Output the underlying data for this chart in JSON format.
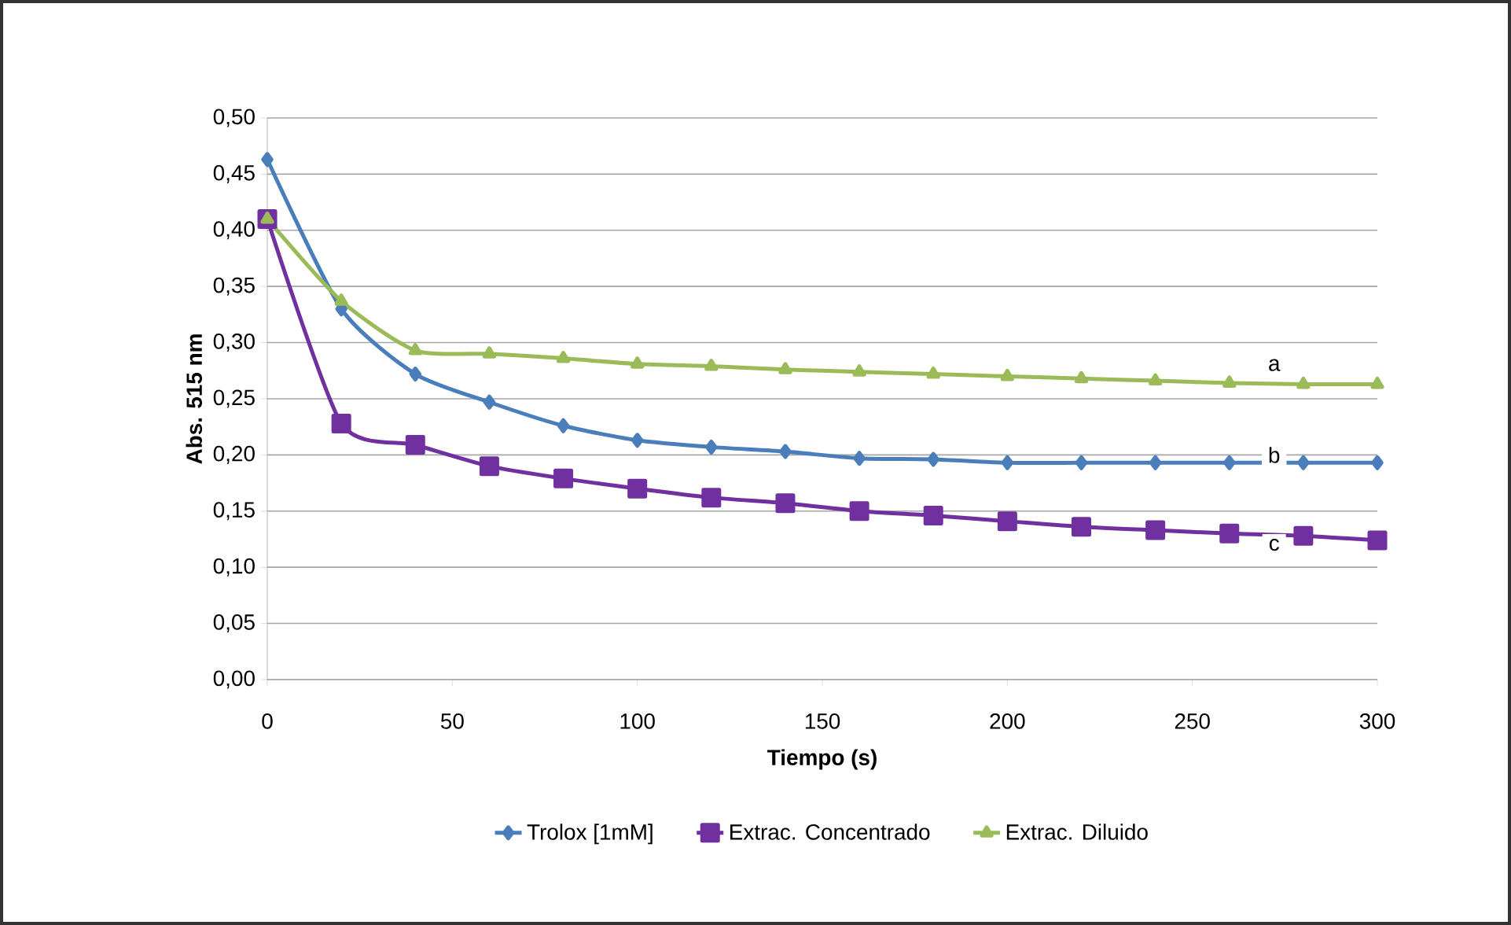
{
  "chart_data": {
    "type": "line",
    "xlabel": "Tiempo (s)",
    "ylabel": "Abs. 515 nm",
    "xlim": [
      0,
      300
    ],
    "xticks": [
      0,
      50,
      100,
      150,
      200,
      250,
      300
    ],
    "ylim": [
      0,
      0.5
    ],
    "yticks": [
      {
        "value": 0,
        "label": "0,00"
      },
      {
        "value": 0.05,
        "label": "0,05"
      },
      {
        "value": 0.1,
        "label": "0,10"
      },
      {
        "value": 0.15,
        "label": "0,15"
      },
      {
        "value": 0.2,
        "label": "0,20"
      },
      {
        "value": 0.25,
        "label": "0,25"
      },
      {
        "value": 0.3,
        "label": "0,30"
      },
      {
        "value": 0.35,
        "label": "0,35"
      },
      {
        "value": 0.4,
        "label": "0,40"
      },
      {
        "value": 0.45,
        "label": "0,45"
      },
      {
        "value": 0.5,
        "label": "0,50"
      }
    ],
    "x": [
      0,
      20,
      40,
      60,
      80,
      100,
      120,
      140,
      160,
      180,
      200,
      220,
      240,
      260,
      280,
      300
    ],
    "grid": "y",
    "legend": "bottom",
    "line_style": "solid",
    "series": [
      {
        "name": "Trolox [1mM]",
        "color": "#4a7ebb",
        "marker": "diamond",
        "values": [
          0.463,
          0.33,
          0.272,
          0.247,
          0.226,
          0.213,
          0.207,
          0.203,
          0.197,
          0.196,
          0.193,
          0.193,
          0.193,
          0.193,
          0.193,
          0.193
        ]
      },
      {
        "name": "Extrac. Concentrado",
        "color": "#7030a0",
        "marker": "square",
        "values": [
          0.41,
          0.228,
          0.209,
          0.19,
          0.179,
          0.17,
          0.162,
          0.157,
          0.15,
          0.146,
          0.141,
          0.136,
          0.133,
          0.13,
          0.128,
          0.124
        ]
      },
      {
        "name": "Extrac. Diluido",
        "color": "#9bbb59",
        "marker": "triangle",
        "values": [
          0.41,
          0.337,
          0.293,
          0.29,
          0.286,
          0.281,
          0.279,
          0.276,
          0.274,
          0.272,
          0.27,
          0.268,
          0.266,
          0.264,
          0.263,
          0.263
        ]
      }
    ],
    "annotations": [
      "a",
      "b",
      "c"
    ]
  }
}
